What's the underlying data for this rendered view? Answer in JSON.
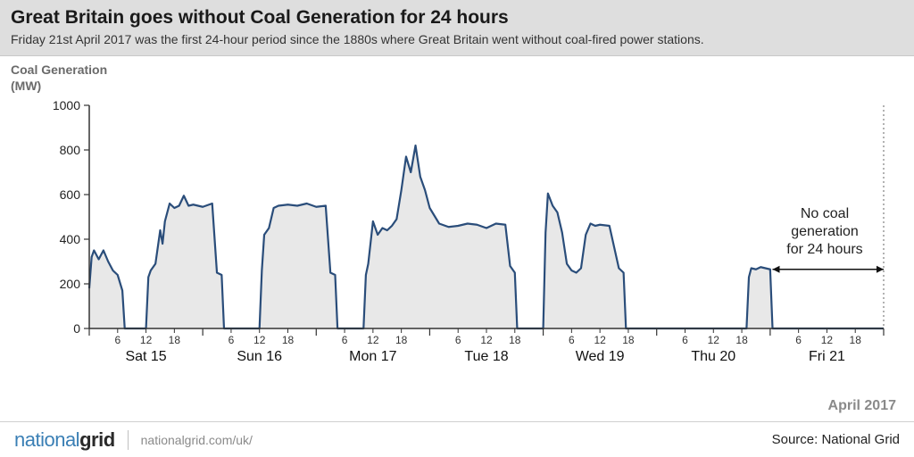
{
  "header": {
    "title": "Great Britain goes without Coal Generation for 24 hours",
    "subtitle": "Friday 21st April 2017 was the first 24-hour period since the 1880s where Great Britain went without coal-fired power stations."
  },
  "chart": {
    "type": "area",
    "ylabel_line1": "Coal Generation",
    "ylabel_line2": "(MW)",
    "ylim": [
      0,
      1000
    ],
    "ytick_step": 200,
    "yticks": [
      0,
      200,
      400,
      600,
      800,
      1000
    ],
    "x_hours_total": 168,
    "minor_ticks": [
      6,
      12,
      18
    ],
    "day_labels": [
      "Sat 15",
      "Sun 16",
      "Mon 17",
      "Tue 18",
      "Wed 19",
      "Thu 20",
      "Fri 21"
    ],
    "line_color": "#2a4d7a",
    "fill_color": "#e8e8e8",
    "axis_color": "#333333",
    "axis_width": 1.5,
    "line_width": 2.2,
    "background": "#ffffff",
    "tick_label_fontsize": 14,
    "day_label_fontsize": 16,
    "series": [
      [
        0,
        180
      ],
      [
        0.5,
        320
      ],
      [
        1,
        350
      ],
      [
        2,
        310
      ],
      [
        3,
        350
      ],
      [
        4,
        300
      ],
      [
        5,
        260
      ],
      [
        6,
        240
      ],
      [
        7,
        170
      ],
      [
        7.5,
        0
      ],
      [
        12,
        0
      ],
      [
        12.5,
        230
      ],
      [
        13,
        260
      ],
      [
        14,
        290
      ],
      [
        15,
        440
      ],
      [
        15.5,
        380
      ],
      [
        16,
        480
      ],
      [
        17,
        560
      ],
      [
        18,
        540
      ],
      [
        19,
        550
      ],
      [
        20,
        595
      ],
      [
        21,
        550
      ],
      [
        22,
        555
      ],
      [
        23,
        550
      ],
      [
        24,
        545
      ],
      [
        26,
        560
      ],
      [
        27,
        250
      ],
      [
        28,
        240
      ],
      [
        28.5,
        0
      ],
      [
        36,
        0
      ],
      [
        36.5,
        260
      ],
      [
        37,
        420
      ],
      [
        38,
        450
      ],
      [
        39,
        540
      ],
      [
        40,
        550
      ],
      [
        42,
        555
      ],
      [
        44,
        550
      ],
      [
        46,
        560
      ],
      [
        48,
        545
      ],
      [
        50,
        550
      ],
      [
        51,
        250
      ],
      [
        52,
        240
      ],
      [
        52.5,
        0
      ],
      [
        58,
        0
      ],
      [
        58.5,
        240
      ],
      [
        59,
        290
      ],
      [
        60,
        480
      ],
      [
        61,
        420
      ],
      [
        62,
        450
      ],
      [
        63,
        440
      ],
      [
        64,
        460
      ],
      [
        65,
        490
      ],
      [
        66,
        620
      ],
      [
        67,
        770
      ],
      [
        68,
        700
      ],
      [
        69,
        820
      ],
      [
        70,
        680
      ],
      [
        71,
        620
      ],
      [
        72,
        540
      ],
      [
        74,
        470
      ],
      [
        76,
        455
      ],
      [
        78,
        460
      ],
      [
        80,
        470
      ],
      [
        82,
        465
      ],
      [
        84,
        450
      ],
      [
        86,
        470
      ],
      [
        88,
        465
      ],
      [
        89,
        280
      ],
      [
        90,
        250
      ],
      [
        90.5,
        0
      ],
      [
        96,
        0
      ],
      [
        96.5,
        430
      ],
      [
        97,
        605
      ],
      [
        98,
        550
      ],
      [
        99,
        520
      ],
      [
        100,
        430
      ],
      [
        101,
        290
      ],
      [
        102,
        260
      ],
      [
        103,
        250
      ],
      [
        104,
        270
      ],
      [
        105,
        420
      ],
      [
        106,
        470
      ],
      [
        107,
        460
      ],
      [
        108,
        465
      ],
      [
        110,
        460
      ],
      [
        112,
        270
      ],
      [
        113,
        250
      ],
      [
        113.5,
        0
      ],
      [
        139,
        0
      ],
      [
        139.5,
        230
      ],
      [
        140,
        270
      ],
      [
        141,
        265
      ],
      [
        142,
        275
      ],
      [
        143,
        270
      ],
      [
        144,
        265
      ],
      [
        144.5,
        0
      ],
      [
        168,
        0
      ]
    ],
    "annotation": {
      "text_line1": "No coal",
      "text_line2": "generation",
      "text_line3": "for 24 hours",
      "arrow_from_hour": 144.5,
      "arrow_to_hour": 168,
      "arrow_y_mw": 265
    },
    "month_label": "April 2017"
  },
  "footer": {
    "logo_part1": "national",
    "logo_part2": "grid",
    "url": "nationalgrid.com/uk/",
    "source": "Source: National Grid",
    "logo_color1": "#3a7fb5",
    "logo_color2": "#2a2a2a"
  }
}
